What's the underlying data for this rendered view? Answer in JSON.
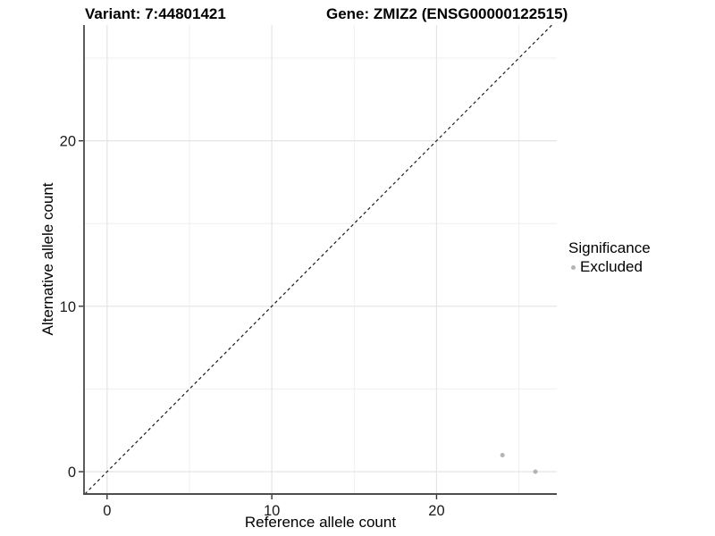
{
  "titles": {
    "variant": "Variant: 7:44801421",
    "gene": "Gene: ZMIZ2 (ENSG00000122515)"
  },
  "legend": {
    "title": "Significance",
    "items": [
      {
        "label": "Excluded",
        "color": "#b4b4b4"
      }
    ]
  },
  "colors": {
    "point": "#b4b4b4",
    "grid_major": "#e4e4e4",
    "grid_minor": "#efefef",
    "axis_line_left": "#333333",
    "axis_line_bottom": "#4d4d4d",
    "tick_mark": "#333333",
    "tick_label": "#1a1a1a",
    "identity_line": "#1a1a1a"
  },
  "chart_data": {
    "type": "scatter",
    "title": "Variant: 7:44801421 / Gene: ZMIZ2 (ENSG00000122515)",
    "xlabel": "Reference allele count",
    "ylabel": "Alternative allele count",
    "xlim": [
      -1.4,
      27.3
    ],
    "ylim": [
      -1.35,
      27.0
    ],
    "x_ticks": [
      0,
      10,
      20
    ],
    "y_ticks": [
      0,
      10,
      20
    ],
    "x_minor_ticks": [
      5,
      15,
      25
    ],
    "y_minor_ticks": [
      5,
      15,
      25
    ],
    "grid": "major and minor, light gray on white",
    "legend_position": "right",
    "series": [
      {
        "name": "Excluded",
        "color": "#b4b4b4",
        "points": [
          {
            "x": 24,
            "y": 1
          },
          {
            "x": 26,
            "y": 0
          }
        ]
      }
    ],
    "reference_line": {
      "type": "identity y=x",
      "style": "dashed",
      "color": "#1a1a1a"
    }
  }
}
